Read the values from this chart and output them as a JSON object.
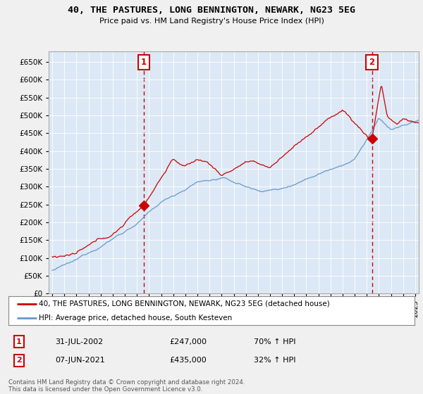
{
  "title": "40, THE PASTURES, LONG BENNINGTON, NEWARK, NG23 5EG",
  "subtitle": "Price paid vs. HM Land Registry's House Price Index (HPI)",
  "ylabel_ticks": [
    "£0",
    "£50K",
    "£100K",
    "£150K",
    "£200K",
    "£250K",
    "£300K",
    "£350K",
    "£400K",
    "£450K",
    "£500K",
    "£550K",
    "£600K",
    "£650K"
  ],
  "ytick_vals": [
    0,
    50000,
    100000,
    150000,
    200000,
    250000,
    300000,
    350000,
    400000,
    450000,
    500000,
    550000,
    600000,
    650000
  ],
  "ylim": [
    0,
    680000
  ],
  "xlim_start": 1994.7,
  "xlim_end": 2025.3,
  "xticks": [
    1995,
    1996,
    1997,
    1998,
    1999,
    2000,
    2001,
    2002,
    2003,
    2004,
    2005,
    2006,
    2007,
    2008,
    2009,
    2010,
    2011,
    2012,
    2013,
    2014,
    2015,
    2016,
    2017,
    2018,
    2019,
    2020,
    2021,
    2022,
    2023,
    2024,
    2025
  ],
  "red_color": "#cc0000",
  "blue_color": "#6699cc",
  "dashed_color": "#cc0000",
  "bg_color": "#f0f0f0",
  "plot_bg": "#dce8f5",
  "legend_label_red": "40, THE PASTURES, LONG BENNINGTON, NEWARK, NG23 5EG (detached house)",
  "legend_label_blue": "HPI: Average price, detached house, South Kesteven",
  "sale1_year": 2002.58,
  "sale1_price": 247000,
  "sale1_label": "1",
  "sale2_year": 2021.43,
  "sale2_price": 435000,
  "sale2_label": "2",
  "footer_line1": "Contains HM Land Registry data © Crown copyright and database right 2024.",
  "footer_line2": "This data is licensed under the Open Government Licence v3.0.",
  "table_row1": [
    "1",
    "31-JUL-2002",
    "£247,000",
    "70% ↑ HPI"
  ],
  "table_row2": [
    "2",
    "07-JUN-2021",
    "£435,000",
    "32% ↑ HPI"
  ]
}
